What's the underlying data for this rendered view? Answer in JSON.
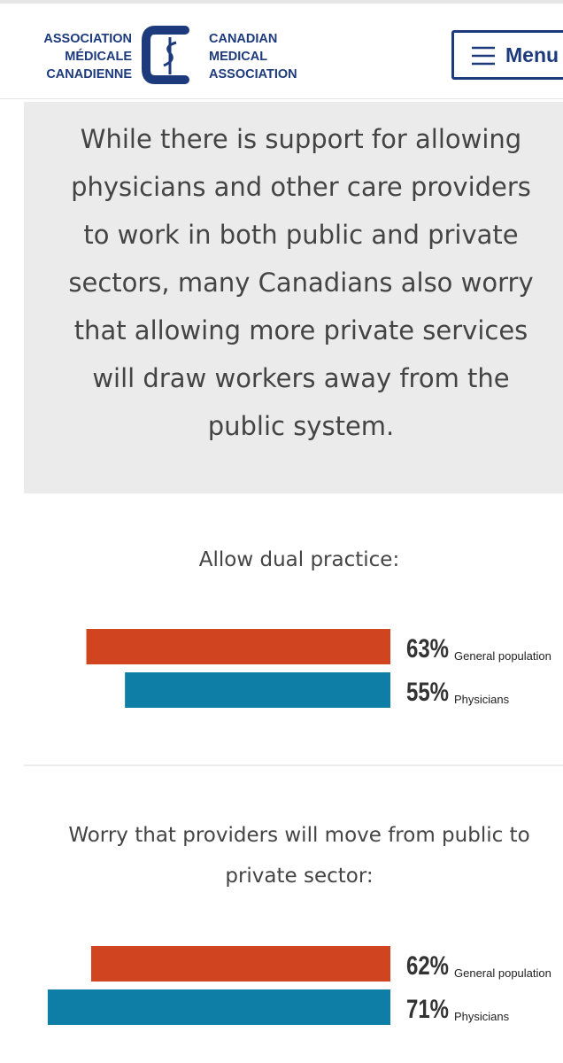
{
  "header": {
    "logo_fr": [
      "ASSOCIATION",
      "MÉDICALE",
      "CANADIENNE"
    ],
    "logo_en": [
      "CANADIAN",
      "MEDICAL",
      "ASSOCIATION"
    ],
    "menu": "Menu"
  },
  "intro": "While there is support for allowing physicians and other care providers to work in both public and private sectors, many Canadians also worry that allowing more private services will draw workers away from the public system.",
  "chart_data": [
    {
      "type": "bar",
      "orientation": "horizontal",
      "title": "Allow dual practice:",
      "xlim": [
        0,
        73
      ],
      "series": [
        {
          "name": "General population",
          "color": "#d0451f",
          "values": [
            63
          ],
          "value_labels": [
            "63%"
          ]
        },
        {
          "name": "Physicians",
          "color": "#0f7ea6",
          "values": [
            55
          ],
          "value_labels": [
            "55%"
          ]
        }
      ]
    },
    {
      "type": "bar",
      "orientation": "horizontal",
      "title": "Worry that providers will move from public to private sector:",
      "xlim": [
        0,
        73
      ],
      "series": [
        {
          "name": "General population",
          "color": "#d0451f",
          "values": [
            62
          ],
          "value_labels": [
            "62%"
          ]
        },
        {
          "name": "Physicians",
          "color": "#0f7ea6",
          "values": [
            71
          ],
          "value_labels": [
            "71%"
          ]
        }
      ]
    }
  ]
}
